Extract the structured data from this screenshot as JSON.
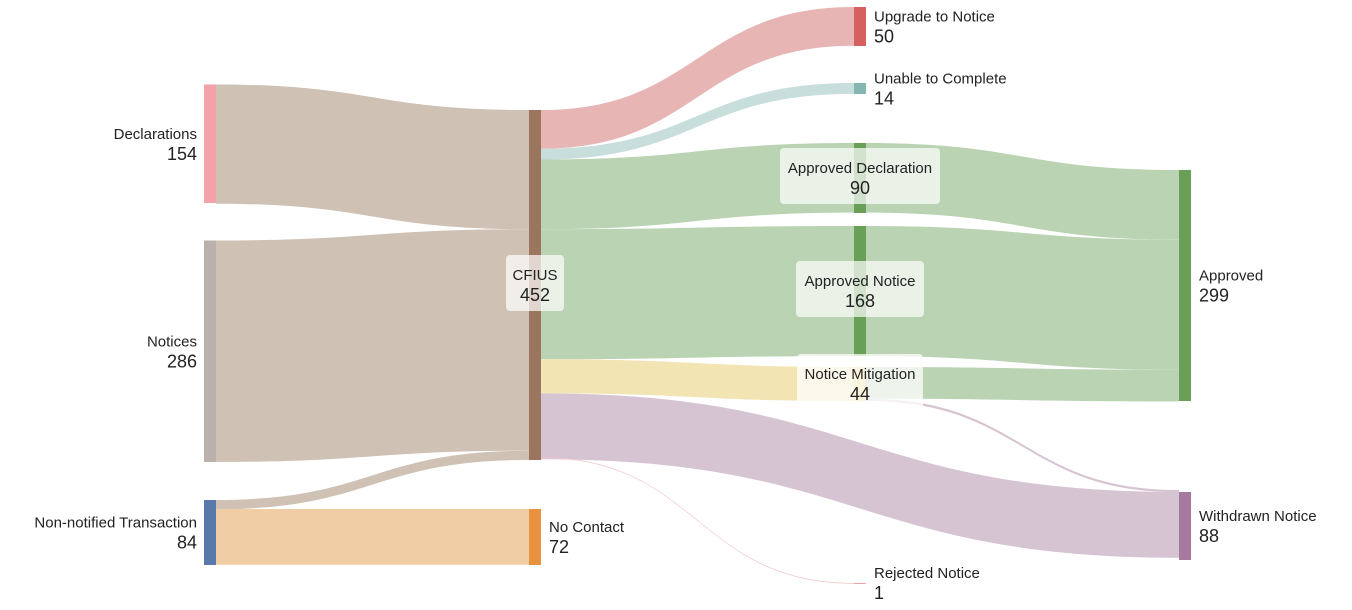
{
  "chart_data": {
    "type": "sankey",
    "nodes": [
      {
        "id": "declarations",
        "label": "Declarations",
        "value": "154",
        "color": "#f2a2a8"
      },
      {
        "id": "notices",
        "label": "Notices",
        "value": "286",
        "color": "#bab0ac"
      },
      {
        "id": "non_notified",
        "label": "Non-notified Transaction",
        "value": "84",
        "color": "#5879a9"
      },
      {
        "id": "cfius",
        "label": "CFIUS",
        "value": "452",
        "color": "#9c755f"
      },
      {
        "id": "no_contact",
        "label": "No Contact",
        "value": "72",
        "color": "#e6923f"
      },
      {
        "id": "upgrade",
        "label": "Upgrade to Notice",
        "value": "50",
        "color": "#d65f5f"
      },
      {
        "id": "unable",
        "label": "Unable to Complete",
        "value": "14",
        "color": "#85b6b2"
      },
      {
        "id": "approved_decl",
        "label": "Approved Declaration",
        "value": "90",
        "color": "#6a9f58"
      },
      {
        "id": "approved_notice",
        "label": "Approved Notice",
        "value": "168",
        "color": "#6a9f58"
      },
      {
        "id": "notice_mitigation",
        "label": "Notice Mitigation",
        "value": "44",
        "color": "#f1d77a"
      },
      {
        "id": "rejected",
        "label": "Rejected Notice",
        "value": "1",
        "color": "#f2a2a8"
      },
      {
        "id": "approved",
        "label": "Approved",
        "value": "299",
        "color": "#6a9f58"
      },
      {
        "id": "withdrawn",
        "label": "Withdrawn Notice",
        "value": "88",
        "color": "#a67a9f"
      }
    ],
    "links": [
      {
        "source": "declarations",
        "target": "cfius",
        "value": 154,
        "color": "#cfc1b4"
      },
      {
        "source": "notices",
        "target": "cfius",
        "value": 286,
        "color": "#cfc1b4"
      },
      {
        "source": "non_notified",
        "target": "cfius",
        "value": 12,
        "color": "#cfc1b4"
      },
      {
        "source": "non_notified",
        "target": "no_contact",
        "value": 72,
        "color": "#f0cda4"
      },
      {
        "source": "cfius",
        "target": "upgrade",
        "value": 50,
        "color": "#e8b5b5"
      },
      {
        "source": "cfius",
        "target": "unable",
        "value": 14,
        "color": "#c8dedc"
      },
      {
        "source": "cfius",
        "target": "approved_decl",
        "value": 90,
        "color": "#bad4b3"
      },
      {
        "source": "cfius",
        "target": "approved_notice",
        "value": 168,
        "color": "#bad4b3"
      },
      {
        "source": "cfius",
        "target": "notice_mitigation",
        "value": 44,
        "color": "#f3e4b3"
      },
      {
        "source": "cfius",
        "target": "withdrawn",
        "value": 85,
        "color": "#d6c4d3"
      },
      {
        "source": "cfius",
        "target": "rejected",
        "value": 1,
        "color": "#f0c4c8"
      },
      {
        "source": "approved_decl",
        "target": "approved",
        "value": 90,
        "color": "#bad4b3"
      },
      {
        "source": "approved_notice",
        "target": "approved",
        "value": 168,
        "color": "#bad4b3"
      },
      {
        "source": "notice_mitigation",
        "target": "approved",
        "value": 41,
        "color": "#bad4b3"
      },
      {
        "source": "notice_mitigation",
        "target": "withdrawn",
        "value": 3,
        "color": "#d6c4d3"
      }
    ]
  }
}
